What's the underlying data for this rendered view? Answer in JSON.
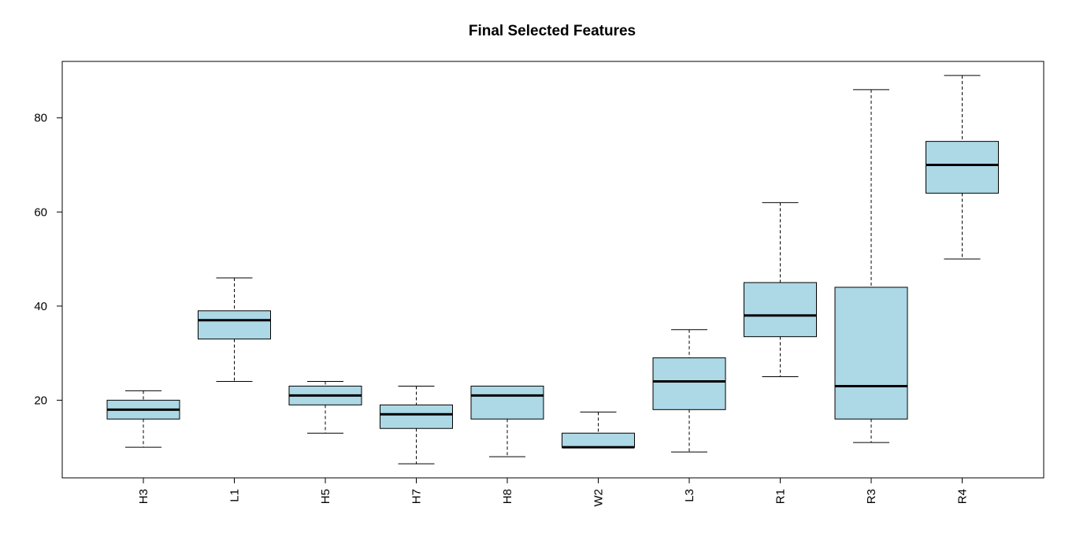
{
  "chart_data": {
    "type": "boxplot",
    "title": "Final Selected Features",
    "xlabel": "",
    "ylabel": "",
    "ylim": [
      3.5,
      92
    ],
    "yticks": [
      20,
      40,
      60,
      80
    ],
    "categories": [
      "H3",
      "L1",
      "H5",
      "H7",
      "H8",
      "W2",
      "L3",
      "R1",
      "R3",
      "R4"
    ],
    "boxes": [
      {
        "name": "H3",
        "min": 10,
        "q1": 16,
        "median": 18,
        "q3": 20,
        "max": 22
      },
      {
        "name": "L1",
        "min": 24,
        "q1": 33,
        "median": 37,
        "q3": 39,
        "max": 46
      },
      {
        "name": "H5",
        "min": 13,
        "q1": 19,
        "median": 21,
        "q3": 23,
        "max": 24
      },
      {
        "name": "H7",
        "min": 6.5,
        "q1": 14,
        "median": 17,
        "q3": 19,
        "max": 23
      },
      {
        "name": "H8",
        "min": 8,
        "q1": 16,
        "median": 21,
        "q3": 23,
        "max": 23
      },
      {
        "name": "W2",
        "min": 10,
        "q1": 10,
        "median": 10,
        "q3": 13,
        "max": 17.5
      },
      {
        "name": "L3",
        "min": 9,
        "q1": 18,
        "median": 24,
        "q3": 29,
        "max": 35
      },
      {
        "name": "R1",
        "min": 25,
        "q1": 33.5,
        "median": 38,
        "q3": 45,
        "max": 62
      },
      {
        "name": "R3",
        "min": 11,
        "q1": 16,
        "median": 23,
        "q3": 44,
        "max": 86
      },
      {
        "name": "R4",
        "min": 50,
        "q1": 64,
        "median": 70,
        "q3": 75,
        "max": 89
      }
    ],
    "box_color": "#add8e6",
    "grid": false,
    "legend": "none"
  }
}
